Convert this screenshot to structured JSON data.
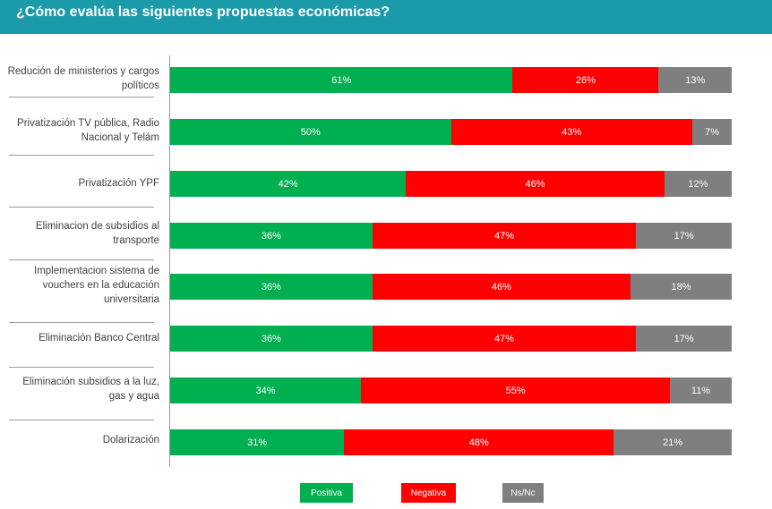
{
  "title": "¿Cómo evalúa las siguientes propuestas económicas?",
  "colors": {
    "header": "#1b9aaa",
    "positiva": "#00b050",
    "negativa": "#ff0000",
    "nsnc": "#7f7f7f"
  },
  "legend": {
    "positiva": "Positiva",
    "negativa": "Negativa",
    "nsnc": "Ns/Nc"
  },
  "chart_data": {
    "type": "bar",
    "orientation": "horizontal",
    "stacked": "100%",
    "categories": [
      "Redución de ministerios y cargos políticos",
      "Privatización TV pública, Radio Nacional y Telám",
      "Privatización YPF",
      "Eliminacion de subsidios al transporte",
      "Implementacion sistema de vouchers en la educación universitaria",
      "Eliminación Banco Central",
      "Eliminación subsidios a la luz, gas y agua",
      "Dolarización"
    ],
    "series": [
      {
        "name": "Positiva",
        "values": [
          61,
          50,
          42,
          36,
          36,
          36,
          34,
          31
        ]
      },
      {
        "name": "Negativa",
        "values": [
          26,
          43,
          46,
          47,
          46,
          47,
          55,
          48
        ]
      },
      {
        "name": "Ns/Nc",
        "values": [
          13,
          7,
          12,
          17,
          18,
          17,
          11,
          21
        ]
      }
    ],
    "value_format": "percent",
    "legend_position": "bottom"
  }
}
